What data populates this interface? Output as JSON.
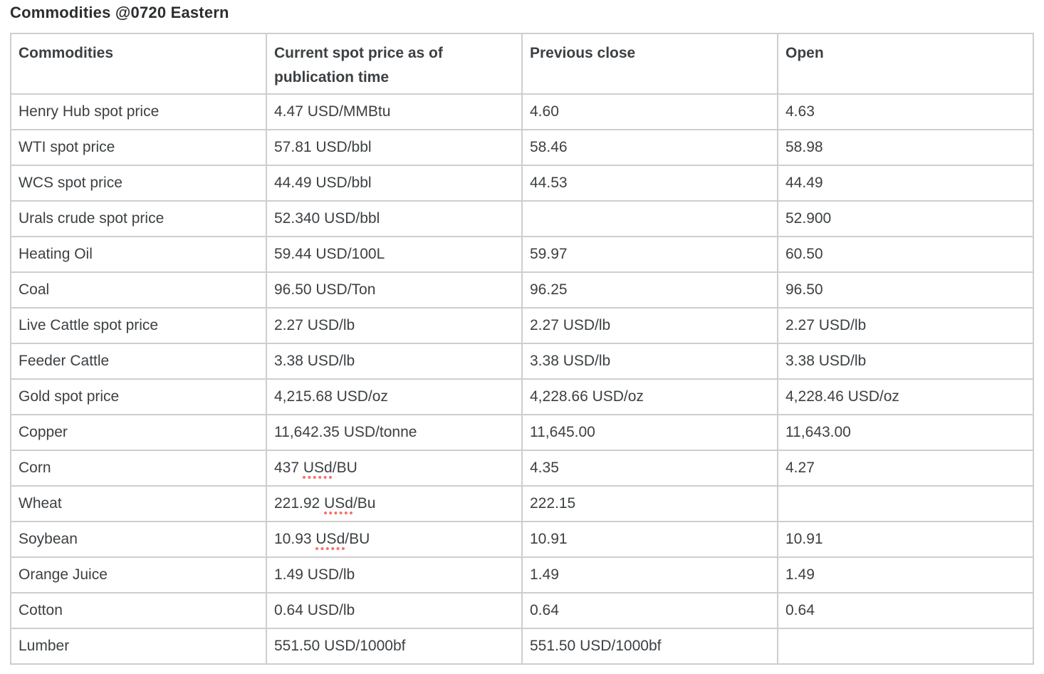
{
  "title": "Commodities @0720 Eastern",
  "table": {
    "headers": [
      "Commodities",
      "Current spot price as of publication time",
      "Previous close",
      "Open"
    ],
    "rows": [
      [
        "Henry Hub spot price",
        "4.47 USD/MMBtu",
        "4.60",
        "4.63"
      ],
      [
        "WTI spot price",
        "57.81 USD/bbl",
        "58.46",
        "58.98"
      ],
      [
        "WCS spot price",
        "44.49 USD/bbl",
        "44.53",
        "44.49"
      ],
      [
        "Urals crude spot price",
        "52.340 USD/bbl",
        "",
        "52.900"
      ],
      [
        "Heating Oil",
        "59.44 USD/100L",
        "59.97",
        "60.50"
      ],
      [
        "Coal",
        "96.50 USD/Ton",
        "96.25",
        "96.50"
      ],
      [
        "Live Cattle spot price",
        "2.27 USD/lb",
        "2.27 USD/lb",
        "2.27 USD/lb"
      ],
      [
        "Feeder Cattle",
        "3.38 USD/lb",
        "3.38 USD/lb",
        "3.38 USD/lb"
      ],
      [
        "Gold spot price",
        "4,215.68 USD/oz",
        "4,228.66 USD/oz",
        "4,228.46 USD/oz"
      ],
      [
        "Copper",
        "11,642.35 USD/tonne",
        "11,645.00",
        "11,643.00"
      ],
      [
        "Corn",
        "437 USd/BU",
        "4.35",
        "4.27"
      ],
      [
        "Wheat",
        "221.92 USd/Bu",
        "222.15",
        ""
      ],
      [
        "Soybean",
        "10.93 USd/BU",
        "10.91",
        "10.91"
      ],
      [
        "Orange Juice",
        "1.49 USD/lb",
        "1.49",
        "1.49"
      ],
      [
        "Cotton",
        "0.64 USD/lb",
        "0.64",
        "0.64"
      ],
      [
        "Lumber",
        "551.50 USD/1000bf",
        "551.50 USD/1000bf",
        ""
      ]
    ]
  },
  "spellcheck": {
    "tokens": [
      "USd"
    ],
    "underline_color": "#f4726a"
  },
  "colors": {
    "text": "#3c4043",
    "border": "#cecece",
    "background": "#ffffff"
  }
}
